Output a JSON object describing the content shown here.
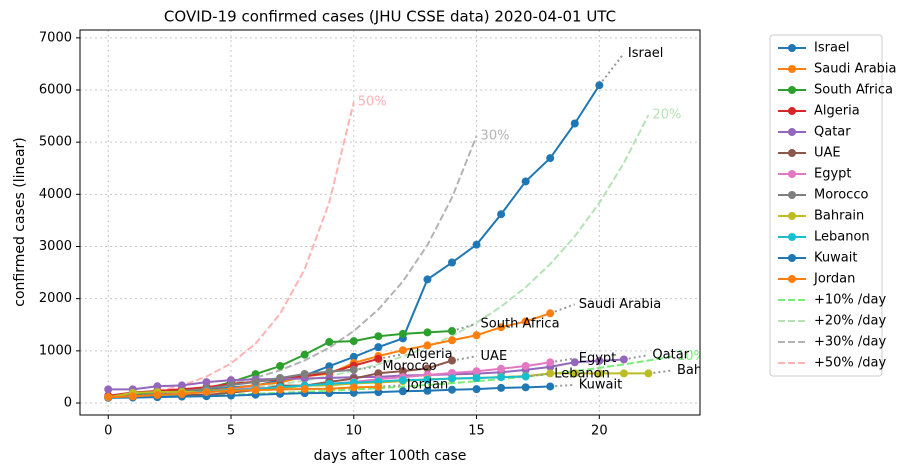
{
  "chart_data": {
    "type": "line",
    "title": "COVID-19 confirmed cases (JHU CSSE data) 2020-04-01 UTC",
    "x_label": "days after 100th case",
    "y_label": "confirmed cases (linear)",
    "xlim": [
      -1.15,
      24.1
    ],
    "xticks": [
      0,
      5,
      10,
      15,
      20
    ],
    "ylim": [
      -230,
      7150
    ],
    "yticks": [
      0,
      1000,
      2000,
      3000,
      4000,
      5000,
      6000,
      7000
    ],
    "grid": true,
    "legend": "outside-right",
    "series": [
      {
        "name": "Israel",
        "color": "#1f77b4",
        "values": [
          109,
          125,
          143,
          200,
          250,
          298,
          337,
          433,
          529,
          705,
          883,
          1071,
          1238,
          2369,
          2693,
          3035,
          3619,
          4247,
          4695,
          5358,
          6092
        ]
      },
      {
        "name": "Saudi Arabia",
        "color": "#ff7f0e",
        "values": [
          103,
          118,
          133,
          171,
          238,
          274,
          344,
          392,
          511,
          562,
          767,
          900,
          1012,
          1104,
          1203,
          1299,
          1453,
          1563,
          1720
        ]
      },
      {
        "name": "South Africa",
        "color": "#2ca02c",
        "values": [
          116,
          150,
          202,
          240,
          274,
          402,
          554,
          709,
          927,
          1170,
          1187,
          1280,
          1326,
          1353,
          1380
        ]
      },
      {
        "name": "Algeria",
        "color": "#d62728",
        "values": [
          139,
          201,
          230,
          264,
          302,
          367,
          409,
          454,
          511,
          584,
          716,
          847
        ]
      },
      {
        "name": "Qatar",
        "color": "#9467bd",
        "values": [
          262,
          262,
          320,
          337,
          401,
          439,
          452,
          460,
          470,
          481,
          494,
          501,
          526,
          537,
          549,
          562,
          590,
          634,
          693,
          781,
          808,
          835
        ]
      },
      {
        "name": "UAE",
        "color": "#8c564b",
        "values": [
          113,
          140,
          140,
          153,
          153,
          198,
          248,
          333,
          333,
          405,
          468,
          570,
          611,
          664,
          814
        ]
      },
      {
        "name": "Egypt",
        "color": "#e377c2",
        "values": [
          110,
          126,
          150,
          196,
          196,
          256,
          285,
          294,
          327,
          366,
          402,
          456,
          495,
          536,
          576,
          609,
          656,
          710,
          779
        ]
      },
      {
        "name": "Morocco",
        "color": "#7f7f7f",
        "values": [
          115,
          143,
          170,
          225,
          275,
          345,
          402,
          479,
          556,
          602,
          638
        ]
      },
      {
        "name": "Bahrain",
        "color": "#bcbd22",
        "values": [
          110,
          195,
          210,
          214,
          214,
          228,
          256,
          278,
          332,
          337,
          377,
          392,
          419,
          458,
          466,
          476,
          499,
          515,
          567,
          569,
          569,
          567,
          567
        ]
      },
      {
        "name": "Lebanon",
        "color": "#17becf",
        "values": [
          111,
          124,
          149,
          163,
          230,
          248,
          267,
          304,
          333,
          368,
          391,
          412,
          438,
          446,
          470,
          479,
          494,
          508
        ]
      },
      {
        "name": "Kuwait",
        "color": "#1f77b4",
        "values": [
          100,
          104,
          112,
          123,
          130,
          142,
          159,
          176,
          189,
          191,
          195,
          208,
          225,
          235,
          255,
          266,
          289,
          300,
          317
        ]
      },
      {
        "name": "Jordan",
        "color": "#ff7f0e",
        "values": [
          112,
          127,
          154,
          172,
          212,
          235,
          246,
          259,
          268,
          274,
          299,
          310
        ]
      },
      {
        "name": "+10% /day",
        "label": "10%",
        "color": "#77ee77",
        "dashed": true,
        "values": [
          100,
          110,
          121,
          133,
          146,
          161,
          177,
          195,
          214,
          236,
          259,
          285,
          314,
          345,
          380,
          418,
          459,
          505,
          556,
          612,
          673,
          740,
          814,
          895
        ]
      },
      {
        "name": "+20% /day",
        "label": "20%",
        "color": "#b5e3b5",
        "dashed": true,
        "values": [
          100,
          120,
          144,
          173,
          207,
          249,
          299,
          358,
          430,
          516,
          619,
          743,
          892,
          1070,
          1284,
          1541,
          1849,
          2219,
          2662,
          3195,
          3834,
          4601,
          5521
        ]
      },
      {
        "name": "+30% /day",
        "label": "30%",
        "color": "#b3b3b3",
        "dashed": true,
        "values": [
          100,
          130,
          169,
          220,
          286,
          371,
          483,
          627,
          816,
          1060,
          1379,
          1792,
          2330,
          3029,
          3937,
          5119
        ]
      },
      {
        "name": "+50% /day",
        "label": "50%",
        "color": "#ffb3b3",
        "dashed": true,
        "values": [
          100,
          150,
          225,
          338,
          506,
          759,
          1139,
          1709,
          2563,
          3844,
          5767
        ]
      }
    ]
  }
}
